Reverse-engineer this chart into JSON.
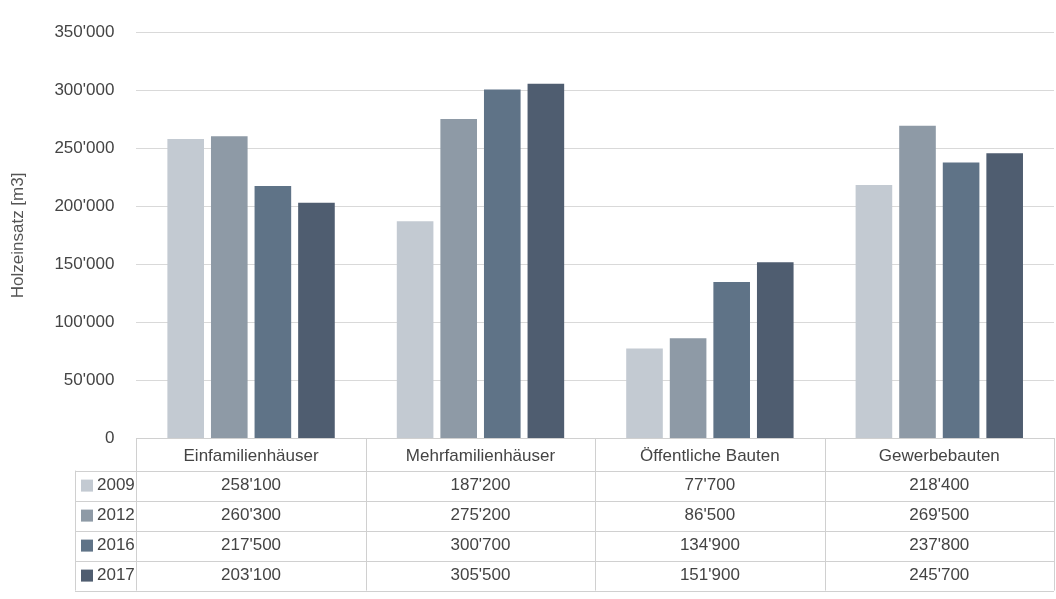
{
  "chart_data": {
    "type": "bar",
    "ylabel": "Holzeinsatz [m3]",
    "categories": [
      "Einfamilienhäuser",
      "Mehrfamilienhäuser",
      "Öffentliche Bauten",
      "Gewerbebauten"
    ],
    "series": [
      {
        "name": "2009",
        "color": "#c3cad2",
        "values": [
          258100,
          187200,
          77700,
          218400
        ],
        "value_labels": [
          "258'100",
          "187'200",
          "77'700",
          "218'400"
        ]
      },
      {
        "name": "2012",
        "color": "#8e9aa6",
        "values": [
          260300,
          275200,
          86500,
          269500
        ],
        "value_labels": [
          "260'300",
          "275'200",
          "86'500",
          "269'500"
        ]
      },
      {
        "name": "2016",
        "color": "#5f7387",
        "values": [
          217500,
          300700,
          134900,
          237800
        ],
        "value_labels": [
          "217'500",
          "300'700",
          "134'900",
          "237'800"
        ]
      },
      {
        "name": "2017",
        "color": "#4f5d70",
        "values": [
          203100,
          305500,
          151900,
          245700
        ],
        "value_labels": [
          "203'100",
          "305'500",
          "151'900",
          "245'700"
        ]
      }
    ],
    "ylim": [
      0,
      350000
    ],
    "yticks": [
      0,
      {
        "value": 50000,
        "label": "50'000"
      },
      {
        "value": 100000,
        "label": "100'000"
      },
      {
        "value": 150000,
        "label": "150'000"
      },
      {
        "value": 200000,
        "label": "200'000"
      },
      {
        "value": 250000,
        "label": "250'000"
      },
      {
        "value": 300000,
        "label": "300'000"
      },
      {
        "value": 350000,
        "label": "350'000"
      }
    ],
    "grid": "y",
    "legend": "bottom"
  }
}
